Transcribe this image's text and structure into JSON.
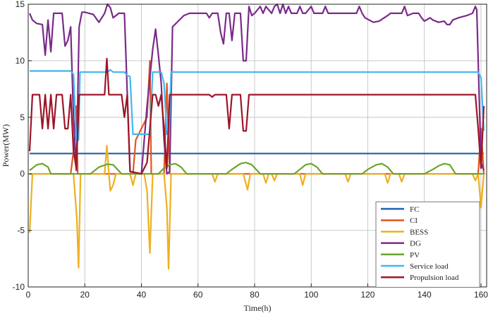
{
  "chart_data": {
    "type": "line",
    "xlabel": "Time(h)",
    "ylabel": "Power(MW)",
    "xlim": [
      0,
      162
    ],
    "ylim": [
      -10,
      15
    ],
    "xticks": [
      0,
      20,
      40,
      60,
      80,
      100,
      120,
      140,
      160
    ],
    "yticks": [
      -10,
      -5,
      0,
      5,
      10,
      15
    ],
    "grid": true,
    "legend_position": "lower-right",
    "series": [
      {
        "name": "FC",
        "color": "#1f5fb0",
        "points": [
          [
            0.5,
            1.8
          ],
          [
            161,
            1.8
          ]
        ]
      },
      {
        "name": "CI",
        "color": "#e0571e",
        "points": [
          [
            0.5,
            0
          ],
          [
            15,
            0
          ],
          [
            16,
            2
          ],
          [
            17,
            6
          ],
          [
            17.5,
            0
          ],
          [
            37,
            0
          ],
          [
            38,
            3
          ],
          [
            40,
            4
          ],
          [
            42,
            5
          ],
          [
            43,
            10
          ],
          [
            43.5,
            0
          ],
          [
            48,
            0
          ],
          [
            49,
            8
          ],
          [
            50,
            0
          ],
          [
            159,
            0
          ],
          [
            160,
            4
          ],
          [
            161,
            0
          ]
        ]
      },
      {
        "name": "BESS",
        "color": "#eeb020",
        "points": [
          [
            0.5,
            -5.2
          ],
          [
            1.5,
            0
          ],
          [
            16,
            0
          ],
          [
            17.2,
            -4
          ],
          [
            17.8,
            -8.3
          ],
          [
            18.5,
            0
          ],
          [
            27,
            0
          ],
          [
            27.8,
            2.5
          ],
          [
            28.5,
            0
          ],
          [
            29,
            -1.5
          ],
          [
            30,
            -1
          ],
          [
            31,
            0
          ],
          [
            36,
            0
          ],
          [
            37,
            -1
          ],
          [
            38,
            0
          ],
          [
            41,
            0
          ],
          [
            42,
            -1.5
          ],
          [
            43,
            -7
          ],
          [
            44,
            0
          ],
          [
            48,
            0
          ],
          [
            49,
            -3
          ],
          [
            49.6,
            -8.4
          ],
          [
            50.5,
            0
          ],
          [
            65,
            0
          ],
          [
            66,
            -0.7
          ],
          [
            67,
            0
          ],
          [
            76,
            0
          ],
          [
            77.5,
            -1.4
          ],
          [
            78.5,
            0
          ],
          [
            83,
            0
          ],
          [
            84,
            -0.8
          ],
          [
            85,
            0
          ],
          [
            86,
            0
          ],
          [
            87,
            -0.6
          ],
          [
            88,
            0
          ],
          [
            96,
            0
          ],
          [
            97,
            -1
          ],
          [
            98,
            0
          ],
          [
            112,
            0
          ],
          [
            113,
            -0.7
          ],
          [
            114,
            0
          ],
          [
            126,
            0
          ],
          [
            127,
            -0.8
          ],
          [
            128,
            0
          ],
          [
            131,
            0
          ],
          [
            132,
            -0.7
          ],
          [
            133,
            0
          ],
          [
            157,
            0
          ],
          [
            158,
            -0.6
          ],
          [
            159,
            0
          ],
          [
            160,
            -3
          ],
          [
            161,
            0
          ]
        ]
      },
      {
        "name": "DG",
        "color": "#7a2a8a",
        "points": [
          [
            0.5,
            14.2
          ],
          [
            1.5,
            13.6
          ],
          [
            3,
            13.3
          ],
          [
            5,
            13.2
          ],
          [
            6,
            10.5
          ],
          [
            7,
            13.6
          ],
          [
            8,
            10.8
          ],
          [
            9,
            14.2
          ],
          [
            12,
            14.2
          ],
          [
            13,
            11.3
          ],
          [
            14,
            11.8
          ],
          [
            15,
            13
          ],
          [
            16,
            5
          ],
          [
            17,
            0.3
          ],
          [
            18,
            13
          ],
          [
            19,
            14.3
          ],
          [
            20,
            14.3
          ],
          [
            23,
            14.1
          ],
          [
            25,
            13.4
          ],
          [
            27,
            14.2
          ],
          [
            28,
            15
          ],
          [
            29,
            14.7
          ],
          [
            30,
            13.8
          ],
          [
            31,
            14
          ],
          [
            32,
            14.2
          ],
          [
            34,
            14.2
          ],
          [
            36,
            0.2
          ],
          [
            40,
            0
          ],
          [
            42,
            6
          ],
          [
            44,
            11
          ],
          [
            45,
            12.8
          ],
          [
            46,
            10.5
          ],
          [
            47,
            8
          ],
          [
            48,
            3
          ],
          [
            49,
            0
          ],
          [
            50,
            0.2
          ],
          [
            51,
            13
          ],
          [
            53,
            13.5
          ],
          [
            55,
            14
          ],
          [
            57,
            14.2
          ],
          [
            63,
            14.2
          ],
          [
            64,
            13.8
          ],
          [
            65,
            14.2
          ],
          [
            67,
            14.2
          ],
          [
            68,
            12.5
          ],
          [
            69,
            11.5
          ],
          [
            70,
            14.2
          ],
          [
            71,
            14.2
          ],
          [
            72,
            11.8
          ],
          [
            73,
            14.2
          ],
          [
            74,
            14.2
          ],
          [
            75,
            14.2
          ],
          [
            76,
            10
          ],
          [
            77,
            10
          ],
          [
            78,
            14.8
          ],
          [
            79,
            14
          ],
          [
            80,
            14.2
          ],
          [
            82,
            14.8
          ],
          [
            83,
            14.2
          ],
          [
            84,
            14.8
          ],
          [
            86,
            14.2
          ],
          [
            87,
            14.8
          ],
          [
            88,
            15
          ],
          [
            89,
            14.2
          ],
          [
            90,
            15
          ],
          [
            91,
            14.2
          ],
          [
            92,
            14.8
          ],
          [
            93,
            14.2
          ],
          [
            95,
            14.2
          ],
          [
            96,
            14.8
          ],
          [
            97,
            14.2
          ],
          [
            98,
            14.2
          ],
          [
            100,
            14.8
          ],
          [
            101,
            14.2
          ],
          [
            104,
            14.2
          ],
          [
            105,
            14.8
          ],
          [
            106,
            14.2
          ],
          [
            116,
            14.2
          ],
          [
            117,
            14.8
          ],
          [
            118,
            14.2
          ],
          [
            119,
            13.8
          ],
          [
            122,
            13.4
          ],
          [
            124,
            13.5
          ],
          [
            127,
            14
          ],
          [
            128,
            14.2
          ],
          [
            132,
            14.2
          ],
          [
            133,
            14.8
          ],
          [
            134,
            14
          ],
          [
            136,
            14.2
          ],
          [
            138,
            14.2
          ],
          [
            139,
            13.8
          ],
          [
            140,
            13.5
          ],
          [
            142,
            13.8
          ],
          [
            143,
            13.6
          ],
          [
            145,
            13.4
          ],
          [
            147,
            13.5
          ],
          [
            148,
            13.2
          ],
          [
            149,
            13.2
          ],
          [
            150,
            13.6
          ],
          [
            152,
            13.8
          ],
          [
            155,
            14
          ],
          [
            157,
            14.2
          ],
          [
            158,
            14.8
          ],
          [
            158.5,
            14.5
          ],
          [
            160,
            1
          ],
          [
            161,
            0.3
          ]
        ]
      },
      {
        "name": "PV",
        "color": "#6aa52b",
        "points": [
          [
            0.5,
            0.3
          ],
          [
            3,
            0.8
          ],
          [
            5,
            0.9
          ],
          [
            7,
            0.6
          ],
          [
            8,
            0
          ],
          [
            22,
            0
          ],
          [
            25,
            0.6
          ],
          [
            28,
            0.85
          ],
          [
            30,
            0.8
          ],
          [
            33,
            0
          ],
          [
            46,
            0
          ],
          [
            48,
            0.5
          ],
          [
            50,
            0.8
          ],
          [
            52,
            0.9
          ],
          [
            54,
            0.6
          ],
          [
            56,
            0
          ],
          [
            70,
            0
          ],
          [
            72,
            0.4
          ],
          [
            75,
            0.9
          ],
          [
            77,
            1
          ],
          [
            79,
            0.8
          ],
          [
            82,
            0
          ],
          [
            94,
            0
          ],
          [
            96,
            0.4
          ],
          [
            98,
            0.8
          ],
          [
            100,
            0.9
          ],
          [
            102,
            0.6
          ],
          [
            104,
            0
          ],
          [
            118,
            0
          ],
          [
            120,
            0.4
          ],
          [
            123,
            0.8
          ],
          [
            125,
            0.9
          ],
          [
            127,
            0.6
          ],
          [
            129,
            0
          ],
          [
            140,
            0
          ],
          [
            143,
            0.4
          ],
          [
            145,
            0.7
          ],
          [
            147,
            0.9
          ],
          [
            149,
            0.8
          ],
          [
            151,
            0
          ],
          [
            161,
            0
          ]
        ]
      },
      {
        "name": "Service load",
        "color": "#41b8ee",
        "points": [
          [
            0.5,
            9.1
          ],
          [
            15,
            9.1
          ],
          [
            16,
            8.8
          ],
          [
            17,
            3
          ],
          [
            17.8,
            3
          ],
          [
            18.3,
            9
          ],
          [
            28,
            9
          ],
          [
            29,
            9.2
          ],
          [
            30,
            9
          ],
          [
            34,
            9
          ],
          [
            35,
            8.7
          ],
          [
            36,
            8.6
          ],
          [
            37,
            3.5
          ],
          [
            41,
            3.5
          ],
          [
            43,
            3.5
          ],
          [
            44,
            9
          ],
          [
            47,
            9
          ],
          [
            48,
            8
          ],
          [
            49,
            3.5
          ],
          [
            49.8,
            3.5
          ],
          [
            50.5,
            9
          ],
          [
            159,
            9
          ],
          [
            160,
            8.5
          ],
          [
            161,
            3.8
          ]
        ]
      },
      {
        "name": "Propulsion load",
        "color": "#9e1528",
        "points": [
          [
            0.5,
            2
          ],
          [
            1.5,
            7
          ],
          [
            4,
            7
          ],
          [
            5,
            4
          ],
          [
            6,
            7
          ],
          [
            7,
            4
          ],
          [
            8,
            7
          ],
          [
            9,
            4
          ],
          [
            10,
            7
          ],
          [
            12,
            7
          ],
          [
            13,
            4
          ],
          [
            14,
            4
          ],
          [
            15,
            7
          ],
          [
            16,
            2
          ],
          [
            17,
            0.5
          ],
          [
            18,
            7
          ],
          [
            26,
            7
          ],
          [
            27,
            7
          ],
          [
            27.8,
            10.2
          ],
          [
            28.5,
            7
          ],
          [
            29,
            7
          ],
          [
            30,
            7
          ],
          [
            33,
            7
          ],
          [
            34,
            5
          ],
          [
            35,
            7
          ],
          [
            36,
            0.2
          ],
          [
            40,
            0
          ],
          [
            42,
            1
          ],
          [
            44,
            7
          ],
          [
            45,
            7
          ],
          [
            46,
            6
          ],
          [
            47,
            7
          ],
          [
            48,
            4
          ],
          [
            49,
            0.5
          ],
          [
            50,
            7
          ],
          [
            64,
            7
          ],
          [
            65,
            6.8
          ],
          [
            66,
            7
          ],
          [
            70,
            7
          ],
          [
            71,
            4
          ],
          [
            72,
            7
          ],
          [
            75,
            7
          ],
          [
            76,
            3.8
          ],
          [
            77,
            3.8
          ],
          [
            78,
            7
          ],
          [
            158,
            7
          ],
          [
            159,
            4
          ],
          [
            160,
            0.5
          ],
          [
            161,
            6
          ]
        ]
      }
    ]
  }
}
